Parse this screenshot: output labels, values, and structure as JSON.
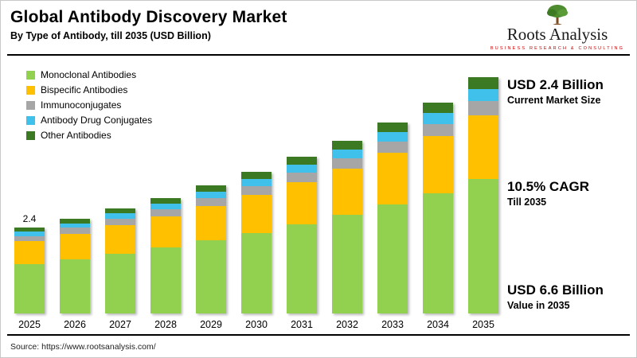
{
  "header": {
    "title": "Global Antibody Discovery Market",
    "subtitle": "By Type of Antibody, till 2035 (USD Billion)"
  },
  "logo": {
    "name": "Roots Analysis",
    "tagline": "BUSINESS RESEARCH & CONSULTING",
    "tree_color": "#4e8c2f",
    "trunk_color": "#7a4a21"
  },
  "stats": [
    {
      "value": "USD 2.4 Billion",
      "label": "Current Market Size"
    },
    {
      "value": "10.5% CAGR",
      "label": "Till 2035"
    },
    {
      "value": "USD 6.6 Billion",
      "label": "Value in 2035"
    }
  ],
  "footer": {
    "source": "Source: https://www.rootsanalysis.com/"
  },
  "chart_data": {
    "type": "bar",
    "stacked": true,
    "title": "Global Antibody Discovery Market, By Type of Antibody, till 2035 (USD Billion)",
    "xlabel": "",
    "ylabel": "USD Billion",
    "ylim": [
      0,
      7
    ],
    "grid": false,
    "legend_position": "top-left",
    "categories": [
      "2025",
      "2026",
      "2027",
      "2028",
      "2029",
      "2030",
      "2031",
      "2032",
      "2033",
      "2034",
      "2035"
    ],
    "series": [
      {
        "name": "Monoclonal Antibodies",
        "color": "#92d050",
        "values": [
          1.37,
          1.51,
          1.67,
          1.85,
          2.04,
          2.25,
          2.49,
          2.75,
          3.04,
          3.36,
          3.76
        ]
      },
      {
        "name": "Bispecific Antibodies",
        "color": "#ffc000",
        "values": [
          0.65,
          0.72,
          0.79,
          0.87,
          0.97,
          1.07,
          1.18,
          1.3,
          1.44,
          1.59,
          1.78
        ]
      },
      {
        "name": "Immunoconjugates",
        "color": "#a6a6a6",
        "values": [
          0.14,
          0.16,
          0.18,
          0.19,
          0.21,
          0.24,
          0.26,
          0.29,
          0.32,
          0.35,
          0.4
        ]
      },
      {
        "name": "Antibody Drug Conjugates",
        "color": "#3fc1ec",
        "values": [
          0.12,
          0.13,
          0.15,
          0.16,
          0.18,
          0.2,
          0.22,
          0.24,
          0.27,
          0.3,
          0.33
        ]
      },
      {
        "name": "Other Antibodies",
        "color": "#3b7a23",
        "values": [
          0.12,
          0.13,
          0.15,
          0.16,
          0.18,
          0.2,
          0.22,
          0.24,
          0.27,
          0.3,
          0.33
        ]
      }
    ],
    "totals": [
      2.4,
      2.65,
      2.93,
      3.24,
      3.58,
      3.95,
      4.37,
      4.83,
      5.33,
      5.9,
      6.6
    ],
    "annotations": [
      {
        "category": "2025",
        "text": "2.4"
      }
    ]
  }
}
